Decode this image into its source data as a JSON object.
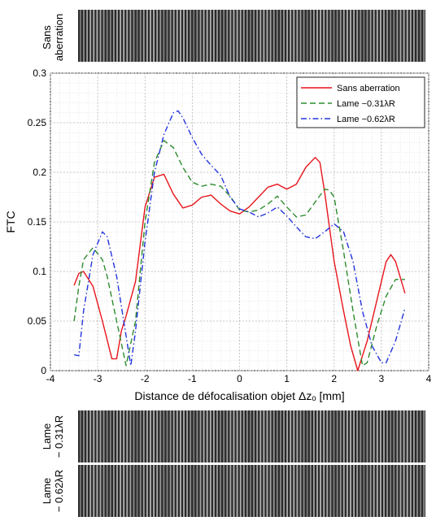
{
  "strips": [
    {
      "label_lines": [
        "Sans",
        "aberration"
      ]
    },
    {
      "label_lines": [
        "Lame",
        "− 0.31λR"
      ]
    },
    {
      "label_lines": [
        "Lame",
        "− 0.62λR"
      ]
    }
  ],
  "chart_data": {
    "type": "line",
    "title": "",
    "xlabel": "Distance de défocalisation objet Δzₒ [mm]",
    "ylabel": "FTC",
    "xlim": [
      -4,
      4
    ],
    "ylim": [
      0,
      0.3
    ],
    "x_ticks": [
      -4,
      -3,
      -2,
      -1,
      0,
      1,
      2,
      3,
      4
    ],
    "y_ticks": [
      0,
      0.05,
      0.1,
      0.15,
      0.2,
      0.25,
      0.3
    ],
    "x_tick_labels": [
      "-4",
      "-3",
      "-2",
      "-1",
      "0",
      "1",
      "2",
      "3",
      "4"
    ],
    "y_tick_labels": [
      "0",
      "0.05",
      "0.1",
      "0.15",
      "0.2",
      "0.25",
      "0.3"
    ],
    "grid": true,
    "minor_grid": true,
    "legend_position": "top-right",
    "series": [
      {
        "name": "Sans aberration",
        "color": "#e8141b",
        "dash": "solid",
        "x": [
          -3.5,
          -3.4,
          -3.3,
          -3.1,
          -2.9,
          -2.7,
          -2.6,
          -2.5,
          -2.4,
          -2.2,
          -2.0,
          -1.8,
          -1.6,
          -1.4,
          -1.2,
          -1.0,
          -0.8,
          -0.6,
          -0.4,
          -0.2,
          0.0,
          0.2,
          0.4,
          0.6,
          0.8,
          1.0,
          1.2,
          1.4,
          1.6,
          1.7,
          1.8,
          2.0,
          2.2,
          2.35,
          2.5,
          2.7,
          2.9,
          3.1,
          3.2,
          3.3,
          3.5
        ],
        "y": [
          0.086,
          0.098,
          0.1,
          0.085,
          0.05,
          0.012,
          0.012,
          0.04,
          0.055,
          0.09,
          0.165,
          0.195,
          0.198,
          0.178,
          0.164,
          0.167,
          0.175,
          0.177,
          0.168,
          0.161,
          0.158,
          0.165,
          0.175,
          0.185,
          0.188,
          0.183,
          0.188,
          0.205,
          0.215,
          0.21,
          0.18,
          0.11,
          0.06,
          0.025,
          0.0,
          0.03,
          0.07,
          0.11,
          0.117,
          0.11,
          0.078
        ]
      },
      {
        "name": "Lame −0.31λR",
        "color": "#2e8b2e",
        "dash": "dashed",
        "x": [
          -3.5,
          -3.4,
          -3.3,
          -3.1,
          -2.9,
          -2.8,
          -2.6,
          -2.4,
          -2.2,
          -2.0,
          -1.8,
          -1.6,
          -1.4,
          -1.2,
          -1.0,
          -0.8,
          -0.6,
          -0.4,
          -0.2,
          0.0,
          0.2,
          0.4,
          0.6,
          0.8,
          1.0,
          1.2,
          1.4,
          1.6,
          1.8,
          1.9,
          2.0,
          2.2,
          2.4,
          2.6,
          2.7,
          2.9,
          3.1,
          3.3,
          3.5
        ],
        "y": [
          0.05,
          0.085,
          0.112,
          0.124,
          0.112,
          0.095,
          0.05,
          0.005,
          0.05,
          0.15,
          0.21,
          0.232,
          0.225,
          0.205,
          0.19,
          0.186,
          0.188,
          0.186,
          0.176,
          0.162,
          0.16,
          0.162,
          0.168,
          0.176,
          0.165,
          0.155,
          0.157,
          0.17,
          0.183,
          0.182,
          0.175,
          0.12,
          0.06,
          0.005,
          0.008,
          0.045,
          0.075,
          0.092,
          0.092
        ]
      },
      {
        "name": "Lame −0.62λR",
        "color": "#2233dd",
        "dash": "dashdot",
        "x": [
          -3.5,
          -3.4,
          -3.3,
          -3.1,
          -2.9,
          -2.8,
          -2.6,
          -2.4,
          -2.3,
          -2.2,
          -2.0,
          -1.8,
          -1.6,
          -1.4,
          -1.3,
          -1.2,
          -1.0,
          -0.8,
          -0.6,
          -0.4,
          -0.2,
          0.0,
          0.2,
          0.4,
          0.6,
          0.8,
          1.0,
          1.2,
          1.4,
          1.6,
          1.8,
          2.0,
          2.2,
          2.4,
          2.6,
          2.8,
          3.0,
          3.1,
          3.3,
          3.5
        ],
        "y": [
          0.016,
          0.015,
          0.06,
          0.117,
          0.14,
          0.135,
          0.095,
          0.035,
          0.005,
          0.04,
          0.13,
          0.2,
          0.238,
          0.26,
          0.262,
          0.255,
          0.235,
          0.218,
          0.207,
          0.197,
          0.175,
          0.163,
          0.16,
          0.155,
          0.159,
          0.165,
          0.156,
          0.145,
          0.135,
          0.133,
          0.14,
          0.148,
          0.14,
          0.11,
          0.06,
          0.025,
          0.008,
          0.008,
          0.03,
          0.063
        ]
      }
    ]
  }
}
